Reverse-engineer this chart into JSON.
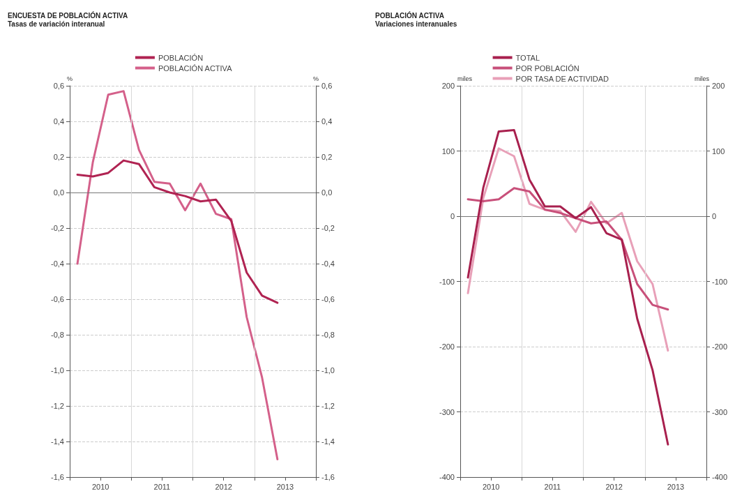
{
  "chart_data": [
    {
      "type": "line",
      "title": "ENCUESTA DE POBLACIÓN ACTIVA",
      "subtitle": "Tasas de variación interanual",
      "ylabel": "%",
      "y2label": "%",
      "x": [
        2010.125,
        2010.375,
        2010.625,
        2010.875,
        2011.125,
        2011.375,
        2011.625,
        2011.875,
        2012.125,
        2012.375,
        2012.625,
        2012.875,
        2013.125,
        2013.375
      ],
      "series": [
        {
          "name": "POBLACIÓN",
          "color": "#b02352",
          "values": [
            0.1,
            0.09,
            0.11,
            0.18,
            0.16,
            0.03,
            0.0,
            -0.02,
            -0.05,
            -0.04,
            -0.16,
            -0.45,
            -0.58,
            -0.62
          ]
        },
        {
          "name": "POBLACIÓN ACTIVA",
          "color": "#d4608a",
          "values": [
            -0.4,
            0.17,
            0.55,
            0.57,
            0.24,
            0.06,
            0.05,
            -0.1,
            0.05,
            -0.12,
            -0.15,
            -0.7,
            -1.04,
            -1.5
          ]
        }
      ],
      "xlim": [
        2010,
        2014
      ],
      "xticks": [
        {
          "value": 2010,
          "label": null
        },
        {
          "value": 2010.5,
          "label": "2010"
        },
        {
          "value": 2011,
          "label": null
        },
        {
          "value": 2011.5,
          "label": "2011"
        },
        {
          "value": 2012,
          "label": null
        },
        {
          "value": 2012.5,
          "label": "2012"
        },
        {
          "value": 2013,
          "label": null
        },
        {
          "value": 2013.5,
          "label": "2013"
        },
        {
          "value": 2014,
          "label": null
        }
      ],
      "ylim": [
        -1.6,
        0.6
      ],
      "yticks": [
        {
          "value": -1.6,
          "label": "-1,6"
        },
        {
          "value": -1.4,
          "label": "-1,4"
        },
        {
          "value": -1.2,
          "label": "-1,2"
        },
        {
          "value": -1.0,
          "label": "-1,0"
        },
        {
          "value": -0.8,
          "label": "-0,8"
        },
        {
          "value": -0.6,
          "label": "-0,6"
        },
        {
          "value": -0.4,
          "label": "-0,4"
        },
        {
          "value": -0.2,
          "label": "-0,2"
        },
        {
          "value": 0,
          "label": "0,0"
        },
        {
          "value": 0.2,
          "label": "0,2"
        },
        {
          "value": 0.4,
          "label": "0,4"
        },
        {
          "value": 0.6,
          "label": "0,6"
        }
      ],
      "y2lim": [
        -1.6,
        0.6
      ],
      "y2ticks": [
        {
          "value": -1.6,
          "label": "-1,6"
        },
        {
          "value": -1.4,
          "label": "-1,4"
        },
        {
          "value": -1.2,
          "label": "-1,2"
        },
        {
          "value": -1.0,
          "label": "-1,0"
        },
        {
          "value": -0.8,
          "label": "-0,8"
        },
        {
          "value": -0.6,
          "label": "-0,6"
        },
        {
          "value": -0.4,
          "label": "-0,4"
        },
        {
          "value": -0.2,
          "label": "-0,2"
        },
        {
          "value": 0,
          "label": "0,0"
        },
        {
          "value": 0.2,
          "label": "0,2"
        },
        {
          "value": 0.4,
          "label": "0,4"
        },
        {
          "value": 0.6,
          "label": "0,6"
        }
      ],
      "ref_lines": [
        {
          "axis": "y",
          "value": 0,
          "color": "#777777"
        },
        {
          "axis": "x",
          "value": 2011,
          "color": "#d8d8d8"
        },
        {
          "axis": "x",
          "value": 2012,
          "color": "#d8d8d8"
        },
        {
          "axis": "x",
          "value": 2013,
          "color": "#d8d8d8"
        }
      ],
      "grid": "y",
      "legend": "top",
      "marker": "none",
      "line_style": "solid"
    },
    {
      "type": "line",
      "title": "POBLACIÓN ACTIVA",
      "subtitle": "Variaciones interanuales",
      "ylabel": "miles",
      "y2label": "miles",
      "x": [
        2010.125,
        2010.375,
        2010.625,
        2010.875,
        2011.125,
        2011.375,
        2011.625,
        2011.875,
        2012.125,
        2012.375,
        2012.625,
        2012.875,
        2013.125,
        2013.375
      ],
      "series": [
        {
          "name": "TOTAL",
          "color": "#a8204e",
          "values": [
            -94,
            44,
            130,
            132,
            56,
            15,
            15,
            -3,
            14,
            -26,
            -36,
            -157,
            -236,
            -350
          ]
        },
        {
          "name": "POR POBLACIÓN",
          "color": "#c8507a",
          "values": [
            26,
            23,
            26,
            43,
            38,
            10,
            5,
            -3,
            -11,
            -8,
            -36,
            -104,
            -136,
            -143
          ]
        },
        {
          "name": "POR TASA DE ACTIVIDAD",
          "color": "#e8a0b8",
          "values": [
            -118,
            28,
            104,
            92,
            19,
            10,
            8,
            -24,
            22,
            -11,
            5,
            -69,
            -104,
            -206
          ]
        }
      ],
      "xlim": [
        2010,
        2014
      ],
      "xticks": [
        {
          "value": 2010,
          "label": null
        },
        {
          "value": 2010.5,
          "label": "2010"
        },
        {
          "value": 2011,
          "label": null
        },
        {
          "value": 2011.5,
          "label": "2011"
        },
        {
          "value": 2012,
          "label": null
        },
        {
          "value": 2012.5,
          "label": "2012"
        },
        {
          "value": 2013,
          "label": null
        },
        {
          "value": 2013.5,
          "label": "2013"
        },
        {
          "value": 2014,
          "label": null
        }
      ],
      "ylim": [
        -400,
        200
      ],
      "yticks": [
        -400,
        -300,
        -200,
        -100,
        0,
        100,
        200
      ],
      "y2lim": [
        -400,
        200
      ],
      "y2ticks": [
        -400,
        -300,
        -200,
        -100,
        0,
        100,
        200
      ],
      "ref_lines": [
        {
          "axis": "y",
          "value": 0,
          "color": "#777777"
        },
        {
          "axis": "x",
          "value": 2011,
          "color": "#d8d8d8"
        },
        {
          "axis": "x",
          "value": 2012,
          "color": "#d8d8d8"
        },
        {
          "axis": "x",
          "value": 2013,
          "color": "#d8d8d8"
        }
      ],
      "grid": "y",
      "legend": "top",
      "marker": "none",
      "line_style": "solid"
    }
  ]
}
